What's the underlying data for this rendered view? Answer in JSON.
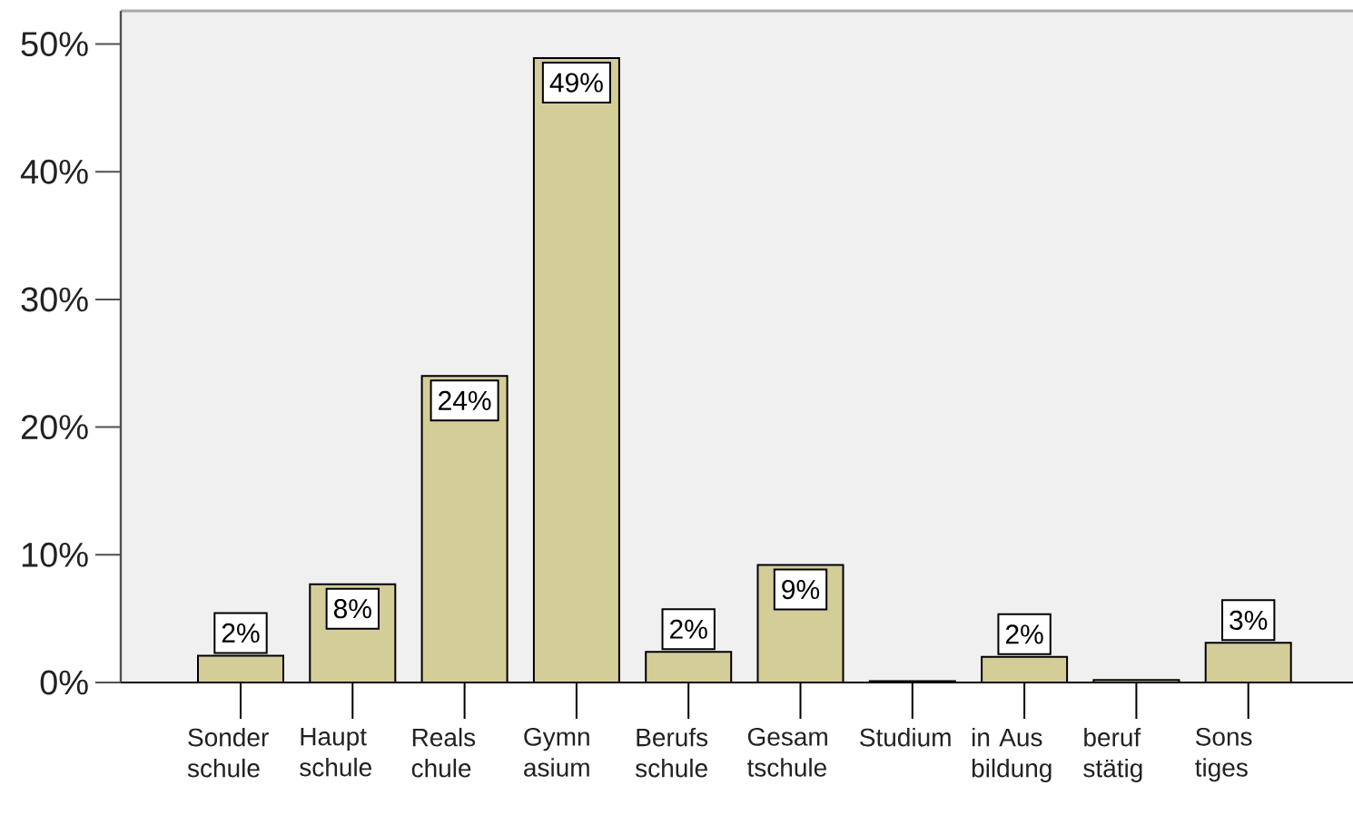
{
  "chart_data": {
    "type": "bar",
    "categories": [
      "Sonderschule",
      "Hauptschule",
      "Realschule",
      "Gymnasium",
      "Berufsschule",
      "Gesamtschule",
      "Studium",
      "in Ausbildung",
      "berufstätig",
      "Sonstiges"
    ],
    "values": [
      2.1,
      7.7,
      24.0,
      48.9,
      2.4,
      9.2,
      0.1,
      2.0,
      0.2,
      3.1
    ],
    "value_labels": [
      "2%",
      "8%",
      "24%",
      "49%",
      "2%",
      "9%",
      null,
      "2%",
      null,
      "3%"
    ],
    "color": "#d3ce97",
    "ylim": [
      0,
      52.6
    ],
    "yticks": [
      {
        "value": 0,
        "label": "0%"
      },
      {
        "value": 10,
        "label": "10%"
      },
      {
        "value": 20,
        "label": "20%"
      },
      {
        "value": 30,
        "label": "30%"
      },
      {
        "value": 40,
        "label": "40%"
      },
      {
        "value": 50,
        "label": "50%"
      }
    ]
  }
}
